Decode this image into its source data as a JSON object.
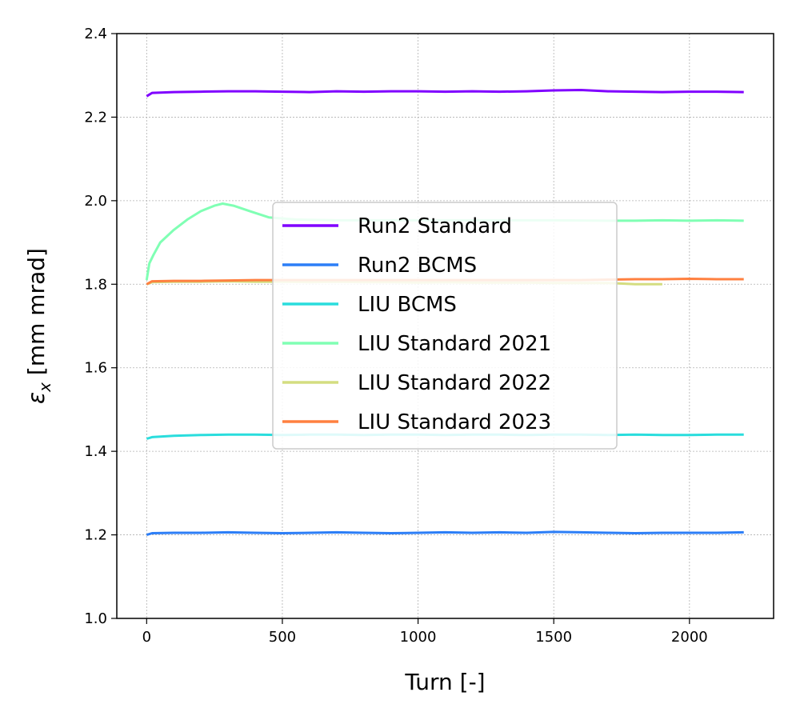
{
  "chart_data": {
    "type": "line",
    "title": "",
    "xlabel": "Turn [-]",
    "ylabel": "ε",
    "ylabel_sub": "x",
    "ylabel_unit": " [mm mrad]",
    "xlim": [
      -110,
      2310
    ],
    "ylim": [
      1.0,
      2.4
    ],
    "xticks": [
      0,
      500,
      1000,
      1500,
      2000
    ],
    "xtick_labels": [
      "0",
      "500",
      "1000",
      "1500",
      "2000"
    ],
    "yticks": [
      1.0,
      1.2,
      1.4,
      1.6,
      1.8,
      2.0,
      2.2,
      2.4
    ],
    "ytick_labels": [
      "1.0",
      "1.2",
      "1.4",
      "1.6",
      "1.8",
      "2.0",
      "2.2",
      "2.4"
    ],
    "grid": true,
    "legend_position": "center",
    "series": [
      {
        "name": "Run2 Standard",
        "color": "#8000ff",
        "x": [
          0,
          20,
          100,
          200,
          300,
          400,
          500,
          600,
          700,
          800,
          900,
          1000,
          1100,
          1200,
          1300,
          1400,
          1500,
          1600,
          1700,
          1800,
          1900,
          2000,
          2100,
          2200
        ],
        "y": [
          2.25,
          2.258,
          2.26,
          2.261,
          2.262,
          2.262,
          2.261,
          2.26,
          2.262,
          2.261,
          2.262,
          2.262,
          2.261,
          2.262,
          2.261,
          2.262,
          2.264,
          2.265,
          2.262,
          2.261,
          2.26,
          2.261,
          2.261,
          2.26
        ]
      },
      {
        "name": "Run2 BCMS",
        "color": "#2c7ef7",
        "x": [
          0,
          20,
          100,
          200,
          300,
          400,
          500,
          600,
          700,
          800,
          900,
          1000,
          1100,
          1200,
          1300,
          1400,
          1500,
          1600,
          1700,
          1800,
          1900,
          2000,
          2100,
          2200
        ],
        "y": [
          1.2,
          1.204,
          1.205,
          1.205,
          1.206,
          1.205,
          1.204,
          1.205,
          1.206,
          1.205,
          1.204,
          1.205,
          1.206,
          1.205,
          1.206,
          1.205,
          1.207,
          1.206,
          1.205,
          1.204,
          1.205,
          1.205,
          1.205,
          1.206
        ]
      },
      {
        "name": "LIU BCMS",
        "color": "#2adddd",
        "x": [
          0,
          20,
          100,
          200,
          300,
          400,
          500,
          600,
          700,
          800,
          900,
          1000,
          1100,
          1200,
          1300,
          1400,
          1500,
          1600,
          1700,
          1800,
          1900,
          2000,
          2100,
          2200
        ],
        "y": [
          1.43,
          1.434,
          1.437,
          1.439,
          1.44,
          1.44,
          1.439,
          1.44,
          1.44,
          1.439,
          1.44,
          1.44,
          1.439,
          1.44,
          1.44,
          1.439,
          1.44,
          1.44,
          1.439,
          1.44,
          1.439,
          1.439,
          1.44,
          1.44
        ]
      },
      {
        "name": "LIU Standard 2021",
        "color": "#80ffb4",
        "x": [
          0,
          10,
          25,
          50,
          100,
          150,
          200,
          250,
          280,
          320,
          380,
          450,
          550,
          700,
          900,
          1100,
          1300,
          1500,
          1700,
          1800,
          1900,
          2000,
          2100,
          2200
        ],
        "y": [
          1.81,
          1.85,
          1.87,
          1.9,
          1.93,
          1.955,
          1.975,
          1.988,
          1.993,
          1.988,
          1.975,
          1.96,
          1.955,
          1.953,
          1.953,
          1.953,
          1.953,
          1.953,
          1.952,
          1.952,
          1.953,
          1.952,
          1.953,
          1.952
        ]
      },
      {
        "name": "LIU Standard 2022",
        "color": "#d4dd80",
        "x": [
          0,
          20,
          100,
          200,
          300,
          400,
          500,
          600,
          700,
          800,
          900,
          1000,
          1100,
          1200,
          1300,
          1400,
          1500,
          1600,
          1700,
          1800,
          1900
        ],
        "y": [
          1.8,
          1.805,
          1.806,
          1.806,
          1.807,
          1.806,
          1.806,
          1.805,
          1.806,
          1.805,
          1.805,
          1.804,
          1.805,
          1.804,
          1.804,
          1.804,
          1.803,
          1.803,
          1.803,
          1.8,
          1.8
        ]
      },
      {
        "name": "LIU Standard 2023",
        "color": "#ff8040",
        "x": [
          0,
          20,
          100,
          200,
          300,
          400,
          500,
          600,
          700,
          800,
          900,
          1000,
          1100,
          1200,
          1300,
          1400,
          1500,
          1600,
          1700,
          1800,
          1900,
          2000,
          2100,
          2200
        ],
        "y": [
          1.8,
          1.807,
          1.808,
          1.808,
          1.809,
          1.81,
          1.81,
          1.81,
          1.81,
          1.81,
          1.81,
          1.81,
          1.81,
          1.81,
          1.81,
          1.81,
          1.81,
          1.81,
          1.811,
          1.812,
          1.812,
          1.813,
          1.812,
          1.812
        ]
      }
    ]
  }
}
